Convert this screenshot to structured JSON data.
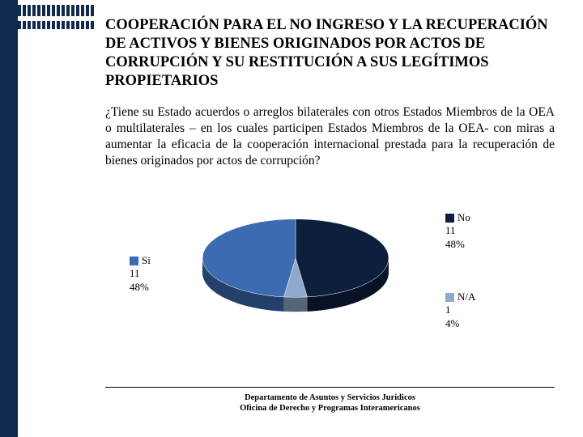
{
  "sidebar": {
    "dark_color": "#102a4e",
    "mark_rows": [
      {
        "height": 14,
        "count": 16
      },
      {
        "height": 10,
        "count": 16
      }
    ]
  },
  "title": "COOPERACIÓN PARA EL NO INGRESO Y LA RECUPERACIÓN DE ACTIVOS Y BIENES ORIGINADOS POR ACTOS DE CORRUPCIÓN Y SU RESTITUCIÓN A SUS LEGÍTIMOS PROPIETARIOS",
  "question": "¿Tiene su Estado acuerdos o arreglos bilaterales con otros Estados Miembros de la OEA o multilaterales – en los cuales participen Estados Miembros de la OEA- con miras a aumentar la eficacia de la cooperación internacional prestada para la recuperación de bienes originados por actos de corrupción?",
  "chart": {
    "type": "pie",
    "background_color": "#ffffff",
    "slices": [
      {
        "key": "no",
        "label": "No",
        "count": "11",
        "pct_label": "48%",
        "value": 48,
        "color": "#0d1f3d"
      },
      {
        "key": "na",
        "label": "N/A",
        "count": "1",
        "pct_label": "4%",
        "value": 4,
        "color": "#8fa9cc"
      },
      {
        "key": "si",
        "label": "Si",
        "count": "11",
        "pct_label": "48%",
        "value": 48,
        "color": "#3b6bb0"
      }
    ],
    "tilt_ry_ratio": 0.42,
    "depth": 18,
    "start_angle_deg": -90
  },
  "footer": {
    "line1": "Departamento de Asuntos y Servicios Jurídicos",
    "line2": "Oficina de Derecho y Programas Interamericanos"
  }
}
